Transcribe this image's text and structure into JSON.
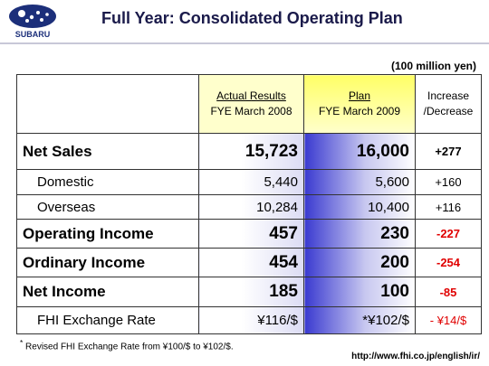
{
  "header": {
    "logo": "SUBARU",
    "title": "Full Year: Consolidated Operating Plan"
  },
  "unit": "(100 million yen)",
  "table": {
    "columns": [
      {
        "line1": "Actual Results",
        "line2": "FYE March 2008"
      },
      {
        "line1": "Plan",
        "line2": "FYE March 2009"
      },
      {
        "line1": "Increase",
        "line2": "/Decrease"
      }
    ],
    "rows": [
      [
        "Net Sales",
        "15,723",
        "16,000",
        "+277"
      ],
      [
        "Domestic",
        "5,440",
        "5,600",
        "+160"
      ],
      [
        "Overseas",
        "10,284",
        "10,400",
        "+116"
      ],
      [
        "Operating Income",
        "457",
        "230",
        "-227"
      ],
      [
        "Ordinary Income",
        "454",
        "200",
        "-254"
      ],
      [
        "Net Income",
        "185",
        "100",
        "-85"
      ],
      [
        "FHI Exchange Rate",
        "¥116/$",
        "*¥102/$",
        "- ¥14/$"
      ]
    ]
  },
  "footnote": {
    "mark": "*",
    "text": "Revised FHI Exchange Rate from ¥100/$ to ¥102/$."
  },
  "url": "http://www.fhi.co.jp/english/ir/"
}
